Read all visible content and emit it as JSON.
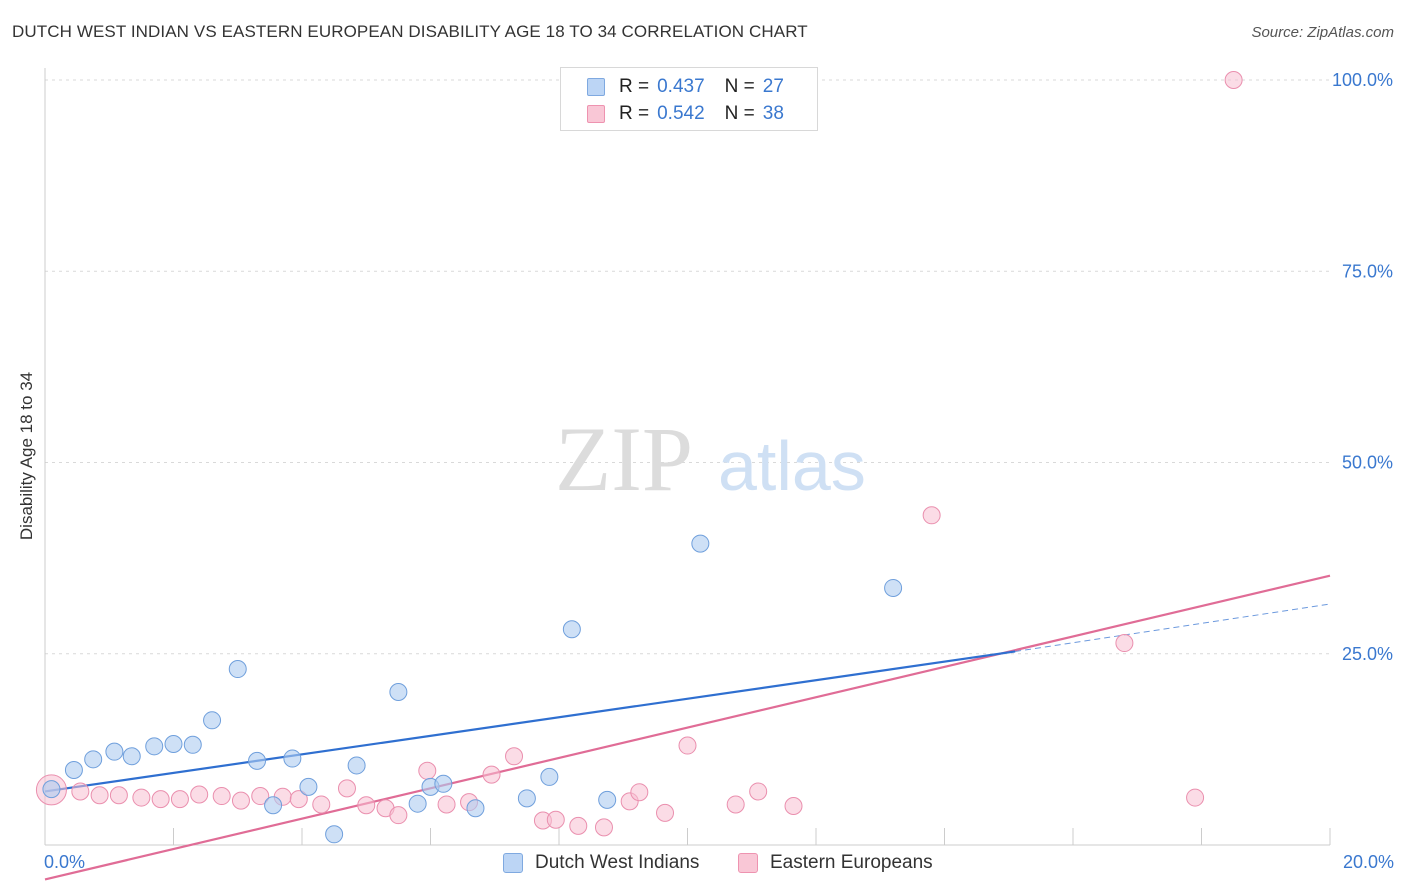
{
  "header": {
    "title": "DUTCH WEST INDIAN VS EASTERN EUROPEAN DISABILITY AGE 18 TO 34 CORRELATION CHART",
    "source": "Source: ZipAtlas.com"
  },
  "watermark": {
    "zip": "ZIP",
    "atlas": "atlas"
  },
  "legend": {
    "rows": [
      {
        "r_label": "R =",
        "r_value": "0.437",
        "n_label": "N =",
        "n_value": "27",
        "color": "#bcd5f5"
      },
      {
        "r_label": "R =",
        "r_value": "0.542",
        "n_label": "N =",
        "n_value": "38",
        "color": "#f9c7d6"
      }
    ]
  },
  "colors": {
    "blue_point": "#aecbf0",
    "blue_stroke": "#6f9fdc",
    "blue_line": "#2f6fd0",
    "pink_point": "#f7bfd1",
    "pink_stroke": "#ea8fae",
    "pink_line": "#e06c96",
    "axis_text": "#3a78cf"
  },
  "chart_data": {
    "type": "scatter",
    "title": "DUTCH WEST INDIAN VS EASTERN EUROPEAN DISABILITY AGE 18 TO 34 CORRELATION CHART",
    "xlabel": "",
    "ylabel": "Disability Age 18 to 34",
    "xlim": [
      0,
      20
    ],
    "ylim": [
      0,
      100
    ],
    "x_tick_labels": [
      "0.0%",
      "20.0%"
    ],
    "y_tick_labels": [
      "25.0%",
      "50.0%",
      "75.0%",
      "100.0%"
    ],
    "y_ticks": [
      25,
      50,
      75,
      100
    ],
    "grid": "horizontal dashed",
    "legend_position": "bottom",
    "series": [
      {
        "name": "Dutch West Indians",
        "r": 0.437,
        "n": 27,
        "points": [
          [
            0.1,
            7.3
          ],
          [
            0.45,
            9.8
          ],
          [
            0.75,
            11.2
          ],
          [
            1.08,
            12.2
          ],
          [
            1.35,
            11.6
          ],
          [
            1.7,
            12.9
          ],
          [
            2.0,
            13.2
          ],
          [
            2.3,
            13.1
          ],
          [
            2.6,
            16.3
          ],
          [
            3.0,
            23.0
          ],
          [
            3.3,
            11.0
          ],
          [
            3.55,
            5.2
          ],
          [
            3.85,
            11.3
          ],
          [
            4.1,
            7.6
          ],
          [
            4.5,
            1.4
          ],
          [
            4.85,
            10.4
          ],
          [
            5.5,
            20.0
          ],
          [
            5.8,
            5.4
          ],
          [
            6.0,
            7.6
          ],
          [
            6.2,
            8.0
          ],
          [
            6.7,
            4.8
          ],
          [
            7.5,
            6.1
          ],
          [
            7.85,
            8.9
          ],
          [
            8.2,
            28.2
          ],
          [
            8.75,
            5.9
          ],
          [
            10.2,
            39.4
          ],
          [
            13.2,
            33.6
          ]
        ],
        "trend": {
          "x": [
            0,
            15.1
          ],
          "y": [
            7.0,
            25.3
          ],
          "dashed_to": [
            20,
            31.5
          ]
        }
      },
      {
        "name": "Eastern Europeans",
        "r": 0.542,
        "n": 38,
        "points": [
          [
            0.1,
            7.2
          ],
          [
            0.55,
            7.0
          ],
          [
            0.85,
            6.5
          ],
          [
            1.15,
            6.5
          ],
          [
            1.5,
            6.2
          ],
          [
            1.8,
            6.0
          ],
          [
            2.1,
            6.0
          ],
          [
            2.4,
            6.6
          ],
          [
            2.75,
            6.4
          ],
          [
            3.05,
            5.8
          ],
          [
            3.35,
            6.4
          ],
          [
            3.7,
            6.3
          ],
          [
            3.95,
            6.0
          ],
          [
            4.3,
            5.3
          ],
          [
            4.7,
            7.4
          ],
          [
            5.0,
            5.2
          ],
          [
            5.3,
            4.8
          ],
          [
            5.5,
            3.9
          ],
          [
            5.95,
            9.7
          ],
          [
            6.25,
            5.3
          ],
          [
            6.6,
            5.6
          ],
          [
            6.95,
            9.2
          ],
          [
            7.3,
            11.6
          ],
          [
            7.75,
            3.2
          ],
          [
            7.95,
            3.3
          ],
          [
            8.3,
            2.5
          ],
          [
            8.7,
            2.3
          ],
          [
            9.1,
            5.7
          ],
          [
            9.25,
            6.9
          ],
          [
            9.65,
            4.2
          ],
          [
            10.0,
            13.0
          ],
          [
            10.75,
            5.3
          ],
          [
            11.1,
            7.0
          ],
          [
            11.65,
            5.1
          ],
          [
            13.8,
            43.1
          ],
          [
            16.8,
            26.4
          ],
          [
            17.9,
            6.2
          ],
          [
            18.5,
            100.0
          ]
        ],
        "trend": {
          "x": [
            0,
            20
          ],
          "y": [
            -4.5,
            35.2
          ]
        }
      }
    ]
  },
  "bottom_legend": {
    "items": [
      {
        "label": "Dutch West Indians",
        "color": "#bcd5f5"
      },
      {
        "label": "Eastern Europeans",
        "color": "#f9c7d6"
      }
    ]
  }
}
